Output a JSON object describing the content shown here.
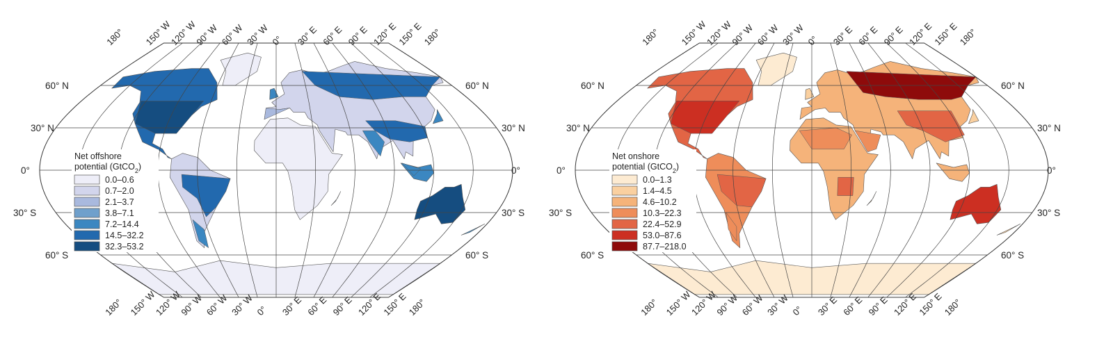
{
  "maps": [
    {
      "id": "offshore",
      "legend_title_line1": "Net offshore",
      "legend_title_line2": "potential (GtCO",
      "legend_title_sub": "2",
      "legend_title_end": ")",
      "classes": [
        {
          "label": "0.0–0.6",
          "color": "#eeeef8"
        },
        {
          "label": "0.7–2.0",
          "color": "#d2d5ec"
        },
        {
          "label": "2.1–3.7",
          "color": "#a9b9de"
        },
        {
          "label": "3.8–7.1",
          "color": "#6fa0cc"
        },
        {
          "label": "7.2–14.4",
          "color": "#3b87c1"
        },
        {
          "label": "14.5–32.2",
          "color": "#2269ae"
        },
        {
          "label": "32.3–53.2",
          "color": "#154d80"
        }
      ]
    },
    {
      "id": "onshore",
      "legend_title_line1": "Net onshore",
      "legend_title_line2": "potential (GtCO",
      "legend_title_sub": "2",
      "legend_title_end": ")",
      "classes": [
        {
          "label": "0.0–1.3",
          "color": "#fdebd2"
        },
        {
          "label": "1.4–4.5",
          "color": "#fad0a0"
        },
        {
          "label": "4.6–10.2",
          "color": "#f5b37a"
        },
        {
          "label": "10.3–22.3",
          "color": "#ee8d5a"
        },
        {
          "label": "22.4–52.9",
          "color": "#e26545"
        },
        {
          "label": "53.0–87.6",
          "color": "#cc2f22"
        },
        {
          "label": "87.7–218.0",
          "color": "#8e0b0b"
        }
      ]
    }
  ],
  "longitude_labels": [
    "180°",
    "150° W",
    "120° W",
    "90° W",
    "60° W",
    "30° W",
    "0°",
    "30° E",
    "60° E",
    "90° E",
    "120° E",
    "150° E",
    "180°"
  ],
  "latitude_labels": {
    "n60": "60° N",
    "n30": "30° N",
    "eq": "0°",
    "s30": "30° S",
    "s60": "60° S"
  }
}
